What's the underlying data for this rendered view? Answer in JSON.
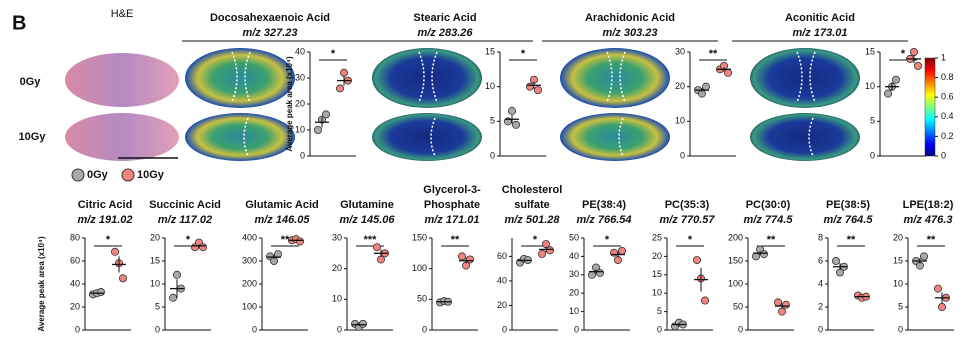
{
  "panel_label": "B",
  "he_label": "H&E",
  "row_labels": [
    "0Gy",
    "10Gy"
  ],
  "chart_data": [
    {
      "type": "dot",
      "title": "Docosahexaenoic Acid",
      "subtitle": "m/z 327.23",
      "ylabel": "Average peak area (x10⁴)",
      "ylim": [
        0,
        40
      ],
      "yticks": [
        0,
        10,
        20,
        30,
        40
      ],
      "significance": "*",
      "series": [
        {
          "name": "0Gy",
          "color": "#a9a9a9",
          "values": [
            10,
            14,
            16
          ],
          "mean": 13,
          "sem": 2
        },
        {
          "name": "10Gy",
          "color": "#f4837d",
          "values": [
            26,
            32,
            29
          ],
          "mean": 29,
          "sem": 2
        }
      ]
    },
    {
      "type": "dot",
      "title": "Stearic Acid",
      "subtitle": "m/z 283.26",
      "ylim": [
        0,
        15
      ],
      "yticks": [
        0,
        5,
        10,
        15
      ],
      "significance": "*",
      "series": [
        {
          "name": "0Gy",
          "color": "#a9a9a9",
          "values": [
            5,
            6.5,
            4.5
          ],
          "mean": 5.3,
          "sem": 0.6
        },
        {
          "name": "10Gy",
          "color": "#f4837d",
          "values": [
            10,
            11,
            9.5
          ],
          "mean": 10.2,
          "sem": 0.5
        }
      ]
    },
    {
      "type": "dot",
      "title": "Arachidonic Acid",
      "subtitle": "m/z 303.23",
      "ylim": [
        0,
        30
      ],
      "yticks": [
        0,
        10,
        20,
        30
      ],
      "significance": "**",
      "series": [
        {
          "name": "0Gy",
          "color": "#a9a9a9",
          "values": [
            19,
            18,
            20
          ],
          "mean": 19,
          "sem": 0.6
        },
        {
          "name": "10Gy",
          "color": "#f4837d",
          "values": [
            25,
            26,
            24
          ],
          "mean": 25,
          "sem": 0.6
        }
      ]
    },
    {
      "type": "dot",
      "title": "Aconitic Acid",
      "subtitle": "m/z 173.01",
      "ylim": [
        0,
        15
      ],
      "yticks": [
        0,
        5,
        10,
        15
      ],
      "significance": "*",
      "series": [
        {
          "name": "0Gy",
          "color": "#a9a9a9",
          "values": [
            9,
            10,
            11
          ],
          "mean": 10,
          "sem": 0.6
        },
        {
          "name": "10Gy",
          "color": "#f4837d",
          "values": [
            14,
            15,
            13
          ],
          "mean": 14,
          "sem": 0.6
        }
      ]
    },
    {
      "type": "colorbar",
      "colormap": "jet",
      "ylim": [
        0,
        1
      ],
      "yticks": [
        0,
        0.2,
        0.4,
        0.6,
        0.8,
        1
      ]
    },
    {
      "type": "dot",
      "title": "Citric Acid",
      "subtitle": "m/z 191.02",
      "ylabel": "Average peak area (x10⁴)",
      "ylim": [
        0,
        80
      ],
      "yticks": [
        0,
        20,
        40,
        60,
        80
      ],
      "significance": "*",
      "series": [
        {
          "name": "0Gy",
          "color": "#a9a9a9",
          "values": [
            31,
            32,
            33
          ],
          "mean": 32,
          "sem": 0.6
        },
        {
          "name": "10Gy",
          "color": "#f4837d",
          "values": [
            68,
            58,
            45
          ],
          "mean": 57,
          "sem": 7
        }
      ]
    },
    {
      "type": "dot",
      "title": "Succinic Acid",
      "subtitle": "m/z 117.02",
      "ylim": [
        0,
        20
      ],
      "yticks": [
        0,
        5,
        10,
        15,
        20
      ],
      "significance": "*",
      "series": [
        {
          "name": "0Gy",
          "color": "#a9a9a9",
          "values": [
            7,
            12,
            9
          ],
          "mean": 9,
          "sem": 2
        },
        {
          "name": "10Gy",
          "color": "#f4837d",
          "values": [
            18,
            19,
            18
          ],
          "mean": 18.3,
          "sem": 0.3
        }
      ]
    },
    {
      "type": "dot",
      "title": "Glutamic Acid",
      "subtitle": "m/z 146.05",
      "ylim": [
        0,
        400
      ],
      "yticks": [
        0,
        100,
        200,
        300,
        400
      ],
      "significance": "**",
      "series": [
        {
          "name": "0Gy",
          "color": "#a9a9a9",
          "values": [
            320,
            300,
            330
          ],
          "mean": 317,
          "sem": 9
        },
        {
          "name": "10Gy",
          "color": "#f4837d",
          "values": [
            390,
            395,
            385
          ],
          "mean": 390,
          "sem": 3
        }
      ]
    },
    {
      "type": "dot",
      "title": "Glutamine",
      "subtitle": "m/z 145.06",
      "ylim": [
        0,
        30
      ],
      "yticks": [
        0,
        10,
        20,
        30
      ],
      "significance": "***",
      "series": [
        {
          "name": "0Gy",
          "color": "#a9a9a9",
          "values": [
            2,
            1,
            2
          ],
          "mean": 1.7,
          "sem": 0.3
        },
        {
          "name": "10Gy",
          "color": "#f4837d",
          "values": [
            27,
            23,
            25
          ],
          "mean": 25,
          "sem": 1.2
        }
      ]
    },
    {
      "type": "dot",
      "title": [
        "Glycerol-3-",
        "Phosphate"
      ],
      "subtitle": "m/z 171.01",
      "ylim": [
        0,
        150
      ],
      "yticks": [
        0,
        50,
        100,
        150
      ],
      "significance": "**",
      "series": [
        {
          "name": "0Gy",
          "color": "#a9a9a9",
          "values": [
            45,
            47,
            46
          ],
          "mean": 46,
          "sem": 0.6
        },
        {
          "name": "10Gy",
          "color": "#f4837d",
          "values": [
            120,
            105,
            115
          ],
          "mean": 113,
          "sem": 4
        }
      ]
    },
    {
      "type": "dot",
      "title": [
        "Cholesterol",
        "sulfate"
      ],
      "subtitle": "m/z 501.28",
      "ylim": [
        0,
        75
      ],
      "yticks": [
        0,
        20,
        40,
        60
      ],
      "significance": "*",
      "series": [
        {
          "name": "0Gy",
          "color": "#a9a9a9",
          "values": [
            55,
            58,
            57
          ],
          "mean": 56.7,
          "sem": 0.9
        },
        {
          "name": "10Gy",
          "color": "#f4837d",
          "values": [
            62,
            70,
            65
          ],
          "mean": 65.7,
          "sem": 2.3
        }
      ]
    },
    {
      "type": "dot",
      "title": "PE(38:4)",
      "subtitle": "m/z 766.54",
      "ylim": [
        0,
        50
      ],
      "yticks": [
        0,
        10,
        20,
        30,
        40,
        50
      ],
      "significance": "*",
      "series": [
        {
          "name": "0Gy",
          "color": "#a9a9a9",
          "values": [
            30,
            34,
            31
          ],
          "mean": 31.7,
          "sem": 1.2
        },
        {
          "name": "10Gy",
          "color": "#f4837d",
          "values": [
            42,
            38,
            43
          ],
          "mean": 41,
          "sem": 1.5
        }
      ]
    },
    {
      "type": "dot",
      "title": "PC(35:3)",
      "subtitle": "m/z 770.57",
      "ylim": [
        0,
        25
      ],
      "yticks": [
        0,
        5,
        10,
        15,
        20,
        25
      ],
      "significance": "*",
      "series": [
        {
          "name": "0Gy",
          "color": "#a9a9a9",
          "values": [
            1,
            2,
            1.5
          ],
          "mean": 1.5,
          "sem": 0.3
        },
        {
          "name": "10Gy",
          "color": "#f4837d",
          "values": [
            19,
            14,
            8
          ],
          "mean": 13.7,
          "sem": 3.2
        }
      ]
    },
    {
      "type": "dot",
      "title": "PC(30:0)",
      "subtitle": "m/z 774.5",
      "ylim": [
        0,
        200
      ],
      "yticks": [
        0,
        50,
        100,
        150,
        200
      ],
      "significance": "**",
      "series": [
        {
          "name": "0Gy",
          "color": "#a9a9a9",
          "values": [
            160,
            175,
            165
          ],
          "mean": 167,
          "sem": 4
        },
        {
          "name": "10Gy",
          "color": "#f4837d",
          "values": [
            60,
            40,
            55
          ],
          "mean": 52,
          "sem": 6
        }
      ]
    },
    {
      "type": "dot",
      "title": "PE(38:5)",
      "subtitle": "m/z 764.5",
      "ylim": [
        0,
        8
      ],
      "yticks": [
        0,
        2,
        4,
        6,
        8
      ],
      "significance": "**",
      "series": [
        {
          "name": "0Gy",
          "color": "#a9a9a9",
          "values": [
            6,
            5,
            5.5
          ],
          "mean": 5.5,
          "sem": 0.3
        },
        {
          "name": "10Gy",
          "color": "#f4837d",
          "values": [
            3,
            2.8,
            2.9
          ],
          "mean": 2.9,
          "sem": 0.06
        }
      ]
    },
    {
      "type": "dot",
      "title": "LPE(18:2)",
      "subtitle": "m/z 476.3",
      "ylim": [
        0,
        20
      ],
      "yticks": [
        0,
        5,
        10,
        15,
        20
      ],
      "significance": "**",
      "series": [
        {
          "name": "0Gy",
          "color": "#a9a9a9",
          "values": [
            15,
            14,
            16
          ],
          "mean": 15,
          "sem": 0.6
        },
        {
          "name": "10Gy",
          "color": "#f4837d",
          "values": [
            9,
            5,
            7
          ],
          "mean": 7,
          "sem": 1.2
        }
      ]
    }
  ]
}
